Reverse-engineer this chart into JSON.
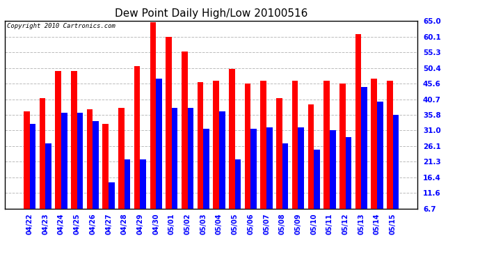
{
  "title": "Dew Point Daily High/Low 20100516",
  "copyright": "Copyright 2010 Cartronics.com",
  "dates": [
    "04/22",
    "04/23",
    "04/24",
    "04/25",
    "04/26",
    "04/27",
    "04/28",
    "04/29",
    "04/30",
    "05/01",
    "05/02",
    "05/03",
    "05/04",
    "05/05",
    "05/06",
    "05/07",
    "05/08",
    "05/09",
    "05/10",
    "05/11",
    "05/12",
    "05/13",
    "05/14",
    "05/15"
  ],
  "highs": [
    37.0,
    41.0,
    49.5,
    49.5,
    37.5,
    33.0,
    38.0,
    51.0,
    64.5,
    60.0,
    55.5,
    46.0,
    46.5,
    50.0,
    45.5,
    46.5,
    41.0,
    46.5,
    39.0,
    46.5,
    45.5,
    61.0,
    47.0,
    46.5
  ],
  "lows": [
    33.0,
    27.0,
    36.5,
    36.5,
    34.0,
    15.0,
    22.0,
    22.0,
    47.0,
    38.0,
    38.0,
    31.5,
    37.0,
    22.0,
    31.5,
    32.0,
    27.0,
    32.0,
    25.0,
    31.0,
    29.0,
    44.5,
    40.0,
    35.8
  ],
  "high_color": "#ff0000",
  "low_color": "#0000ff",
  "bg_color": "#ffffff",
  "grid_color": "#bbbbbb",
  "yticks": [
    6.7,
    11.6,
    16.4,
    21.3,
    26.1,
    31.0,
    35.8,
    40.7,
    45.6,
    50.4,
    55.3,
    60.1,
    65.0
  ],
  "ymin": 6.7,
  "ymax": 65.0,
  "bar_width": 0.38
}
